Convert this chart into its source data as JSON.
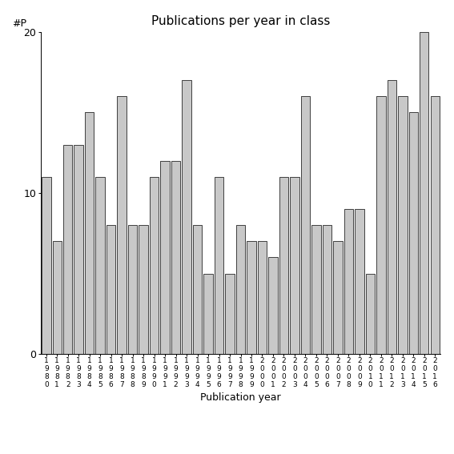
{
  "years": [
    1980,
    1981,
    1982,
    1983,
    1984,
    1985,
    1986,
    1987,
    1988,
    1989,
    1990,
    1991,
    1992,
    1993,
    1994,
    1995,
    1996,
    1997,
    1998,
    1999,
    2000,
    2001,
    2002,
    2003,
    2004,
    2005,
    2006,
    2007,
    2008,
    2009,
    2010,
    2011,
    2012,
    2013,
    2014,
    2015,
    2016
  ],
  "values": [
    11,
    7,
    13,
    13,
    15,
    11,
    8,
    16,
    8,
    8,
    11,
    12,
    12,
    17,
    8,
    5,
    11,
    5,
    8,
    7,
    7,
    6,
    11,
    11,
    16,
    8,
    8,
    7,
    9,
    9,
    5,
    16,
    17,
    16,
    15,
    20,
    16
  ],
  "title": "Publications per year in class",
  "xlabel": "Publication year",
  "ylabel": "#P",
  "ylim": [
    0,
    20
  ],
  "yticks": [
    0,
    10,
    20
  ],
  "bar_color": "#c8c8c8",
  "bar_edgecolor": "#000000",
  "background_color": "#ffffff"
}
